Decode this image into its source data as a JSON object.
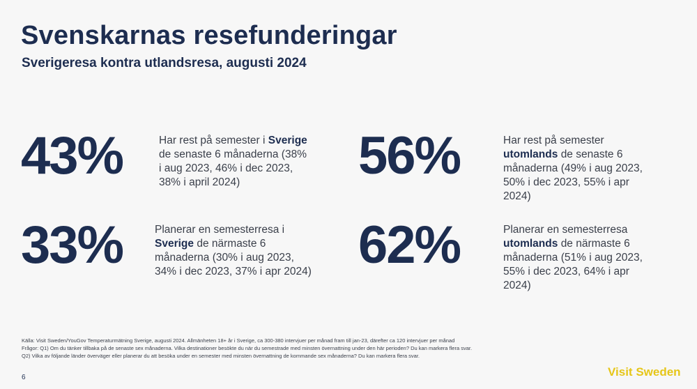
{
  "header": {
    "title": "Svenskarnas resefunderingar",
    "subtitle": "Sverigeresa kontra utlandsresa, augusti 2024"
  },
  "stats": [
    {
      "value": "43%",
      "pre": "Har rest på semester i",
      "highlight": "Sverige",
      "post": "de senaste 6 månaderna (38% i aug 2023, 46% i dec 2023, 38% i april 2024)"
    },
    {
      "value": "56%",
      "pre": "Har rest på semester",
      "highlight": "utomlands",
      "post": "de senaste 6 månaderna (49% i aug 2023, 50% i dec 2023, 55% i apr 2024)"
    },
    {
      "value": "33%",
      "pre": "Planerar en semesterresa i",
      "highlight": "Sverige",
      "post": "de närmaste 6 månaderna (30% i aug 2023, 34% i dec 2023, 37% i apr 2024)"
    },
    {
      "value": "62%",
      "pre": "Planerar en semesterresa",
      "highlight": "utomlands",
      "post": "de närmaste 6 månaderna (51% i aug 2023, 55% i dec 2023, 64% i apr 2024)"
    }
  ],
  "footer": {
    "source": "Källa: Visit Sweden/YouGov Temperaturmätning Sverige, augusti 2024. Allmänheten 18+ år i Sverige, ca 300-380 intervjuer per månad fram till jan-23, därefter ca 120 intervjuer per månad",
    "q1": "Frågor: Q1) Om du tänker tillbaka på de senaste sex månaderna. Vilka destinationer besökte du när du semestrade med minsten övernattning under den här perioden? Du kan markera flera svar.",
    "q2": "Q2) Vilka av följande länder överväger eller planerar du att besöka under en semester med minsten övernattning de kommande sex månaderna? Du kan markera flera svar.",
    "page_number": "6",
    "logo": "Visit Sweden"
  },
  "colors": {
    "navy": "#1d2d50",
    "text": "#3a3f4a",
    "logo_yellow": "#e6c619",
    "background": "#f7f7f7"
  }
}
